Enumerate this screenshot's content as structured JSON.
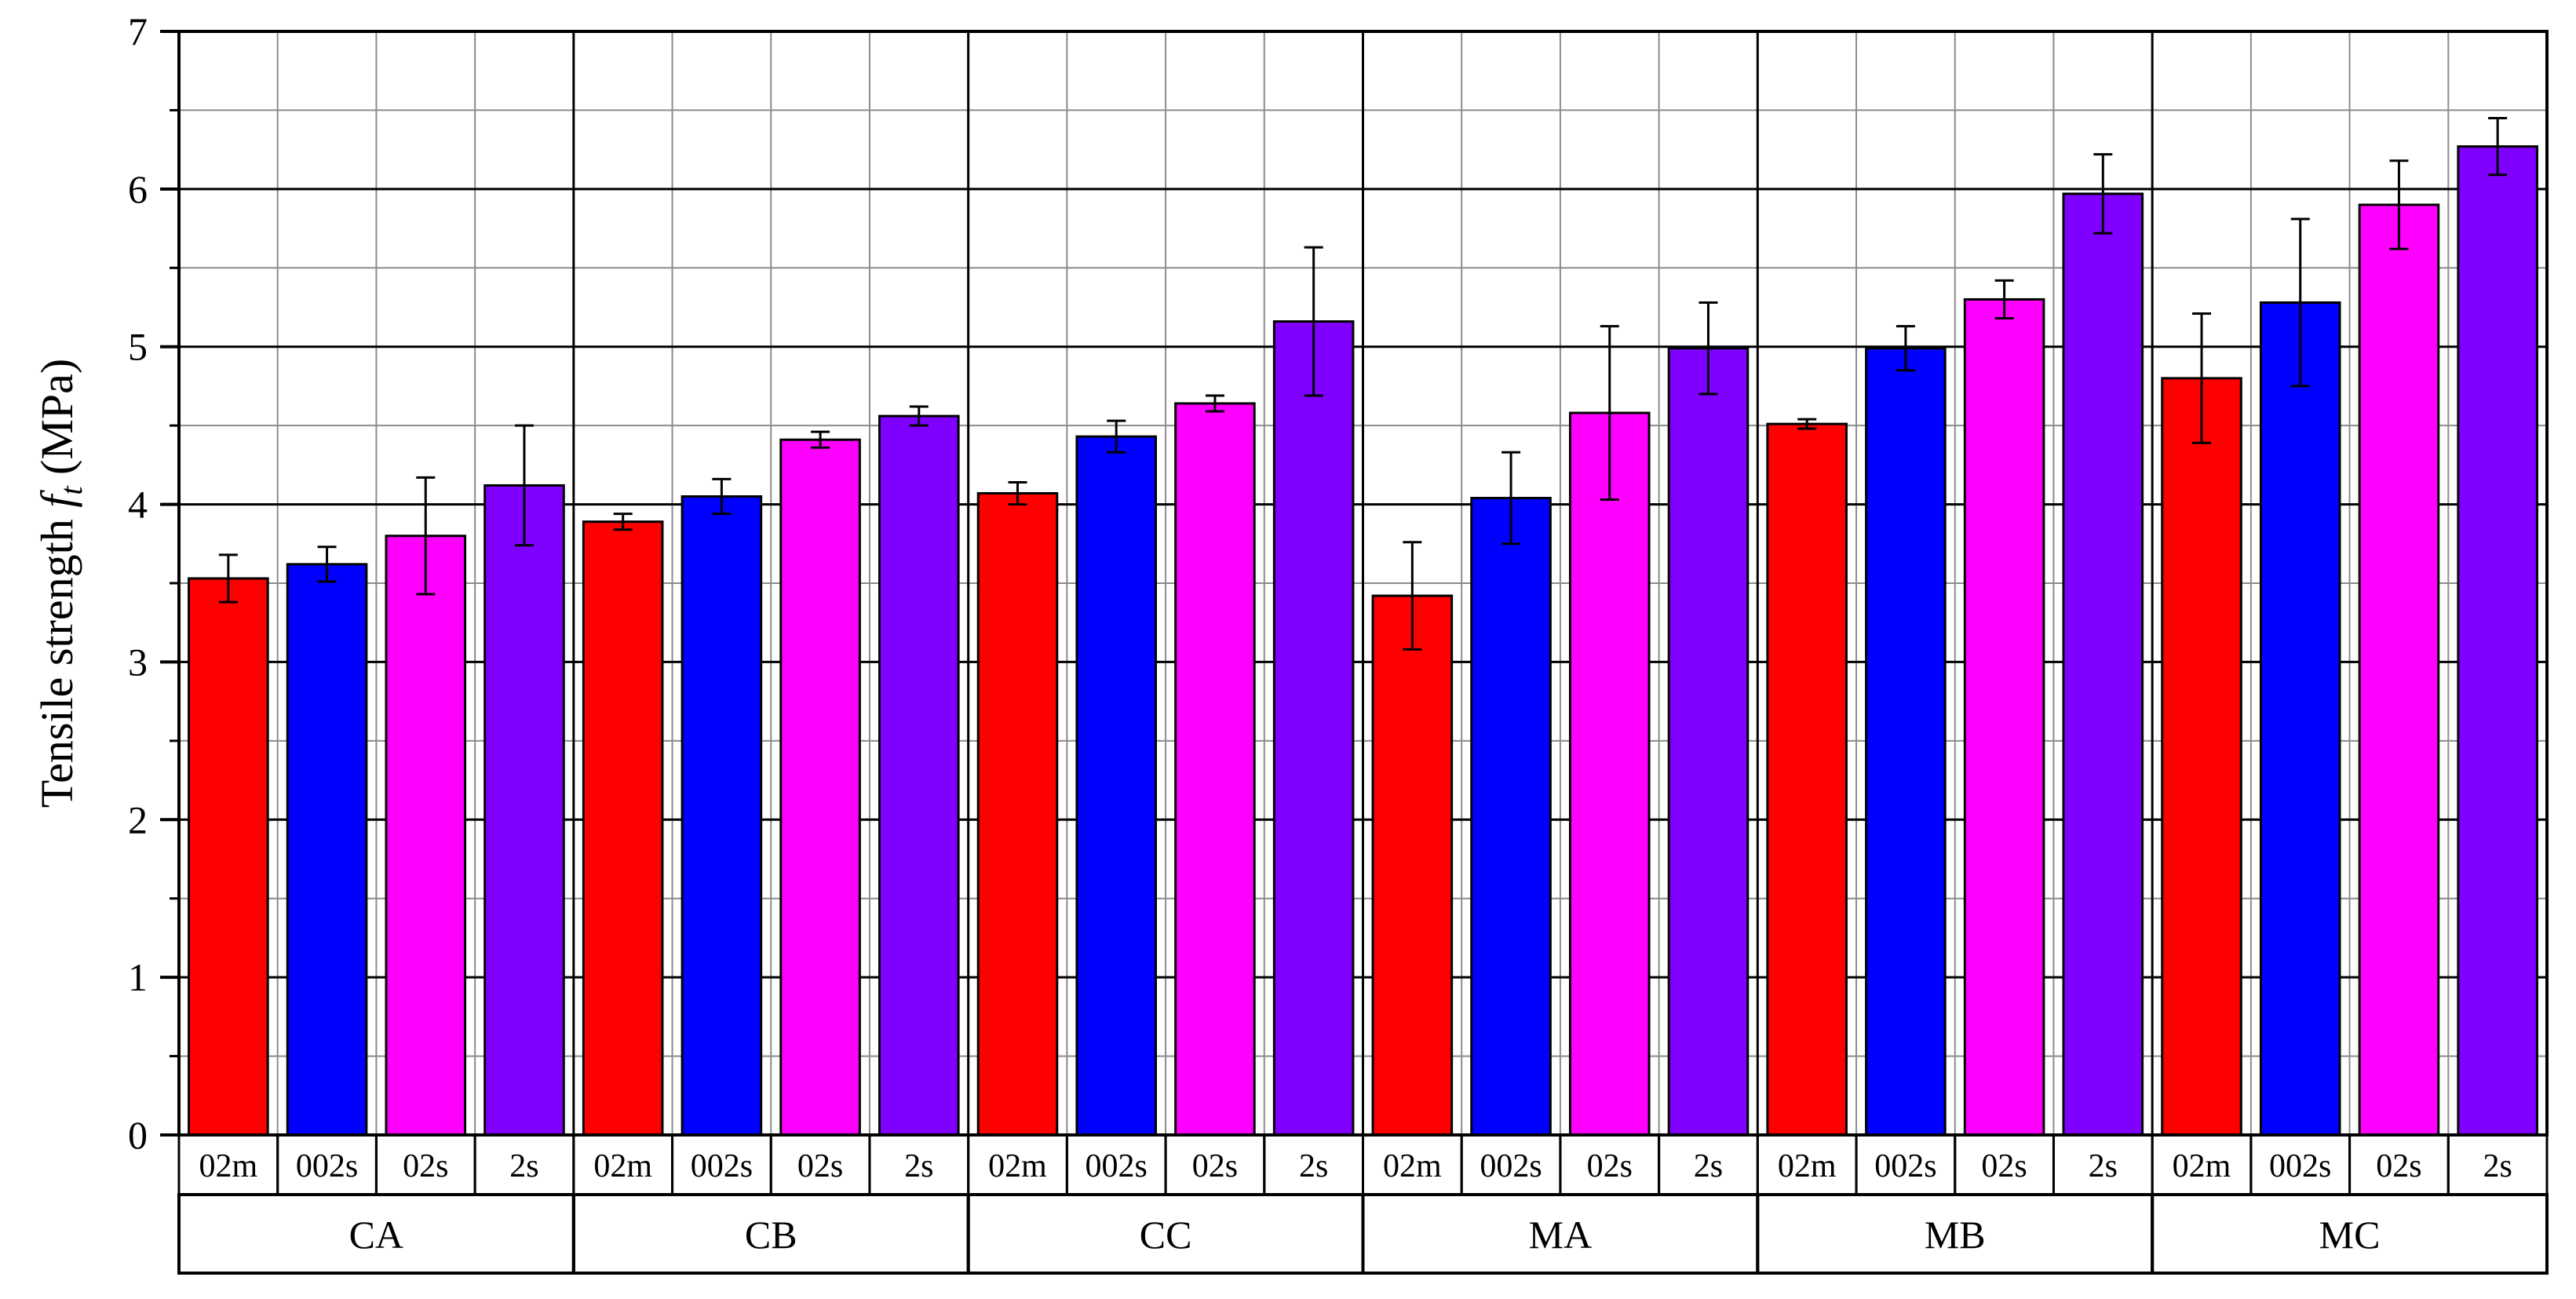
{
  "chart_data": {
    "type": "bar",
    "ylabel": "Tensile strength f_t (MPa)",
    "ylabel_parts": {
      "main": "Tensile strength ",
      "symbol": "f",
      "subscript": "t",
      "unit": " (MPa)"
    },
    "xlabel": "",
    "ylim": [
      0,
      7
    ],
    "y_ticks": [
      "0",
      "1",
      "2",
      "3",
      "4",
      "5",
      "6",
      "7"
    ],
    "grid": true,
    "legend": "none",
    "groups": [
      "CA",
      "CB",
      "CC",
      "MA",
      "MB",
      "MC"
    ],
    "sub_categories": [
      "02m",
      "002s",
      "02s",
      "2s"
    ],
    "series": [
      {
        "label": "02m",
        "color": "#ff0000",
        "values": [
          3.53,
          3.89,
          4.07,
          3.42,
          4.51,
          4.8
        ],
        "errors": [
          0.15,
          0.05,
          0.07,
          0.34,
          0.03,
          0.41
        ]
      },
      {
        "label": "002s",
        "color": "#0000ff",
        "values": [
          3.62,
          4.05,
          4.43,
          4.04,
          4.99,
          5.28
        ],
        "errors": [
          0.11,
          0.11,
          0.1,
          0.29,
          0.14,
          0.53
        ]
      },
      {
        "label": "02s",
        "color": "#ff00ff",
        "values": [
          3.8,
          4.41,
          4.64,
          4.58,
          5.3,
          5.9
        ],
        "errors": [
          0.37,
          0.05,
          0.05,
          0.55,
          0.12,
          0.28
        ]
      },
      {
        "label": "2s",
        "color": "#7f00ff",
        "values": [
          4.12,
          4.56,
          5.16,
          4.99,
          5.97,
          6.27
        ],
        "errors": [
          0.38,
          0.06,
          0.47,
          0.29,
          0.25,
          0.18
        ]
      }
    ]
  }
}
